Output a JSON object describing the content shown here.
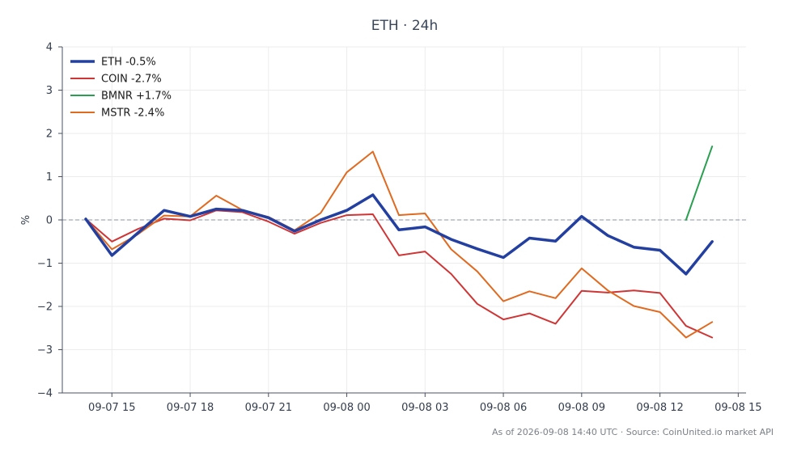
{
  "chart_data": {
    "type": "line",
    "title": "ETH · 24h",
    "ylabel": "%",
    "xlabel": "",
    "ylim": [
      -4,
      4
    ],
    "yticks": [
      "4",
      "3",
      "2",
      "1",
      "0",
      "−1",
      "−2",
      "−3",
      "−4"
    ],
    "ytick_values": [
      4,
      3,
      2,
      1,
      0,
      -1,
      -2,
      -3,
      -4
    ],
    "xlim_hours": [
      13.1,
      39.3
    ],
    "xticks": [
      "09-07 15",
      "09-07 18",
      "09-07 21",
      "09-08 00",
      "09-08 03",
      "09-08 06",
      "09-08 09",
      "09-08 12",
      "09-08 15"
    ],
    "xtick_hours": [
      15,
      18,
      21,
      24,
      27,
      30,
      33,
      36,
      39
    ],
    "grid": true,
    "baseline": 0,
    "legend_position": "top-left",
    "footer": "As of 2026-09-08 14:40 UTC · Source: CoinUnited.io market API",
    "series": [
      {
        "name": "ETH -0.5%",
        "color": "#2340a0",
        "width": 3.5,
        "x": [
          14,
          15,
          16,
          17,
          18,
          19,
          20,
          21,
          22,
          23,
          24,
          25,
          26,
          27,
          28,
          29,
          30,
          31,
          32,
          33,
          34,
          35,
          36,
          37,
          38
        ],
        "values": [
          0.02,
          -0.82,
          -0.3,
          0.22,
          0.08,
          0.25,
          0.22,
          0.05,
          -0.26,
          0.0,
          0.22,
          0.58,
          -0.23,
          -0.16,
          -0.45,
          -0.67,
          -0.87,
          -0.42,
          -0.49,
          0.08,
          -0.36,
          -0.63,
          -0.7,
          -1.25,
          -0.5
        ]
      },
      {
        "name": "COIN -2.7%",
        "color": "#d03535",
        "width": 2,
        "x": [
          14,
          15,
          16,
          17,
          18,
          19,
          20,
          21,
          22,
          23,
          24,
          25,
          26,
          27,
          28,
          29,
          30,
          31,
          32,
          33,
          34,
          35,
          36,
          37,
          38
        ],
        "values": [
          0.02,
          -0.5,
          -0.21,
          0.03,
          -0.01,
          0.22,
          0.18,
          -0.04,
          -0.32,
          -0.07,
          0.11,
          0.13,
          -0.82,
          -0.73,
          -1.25,
          -1.94,
          -2.3,
          -2.16,
          -2.4,
          -1.64,
          -1.68,
          -1.63,
          -1.69,
          -2.45,
          -2.72
        ]
      },
      {
        "name": "BMNR +1.7%",
        "color": "#28a050",
        "width": 2,
        "x": [
          37,
          38
        ],
        "values": [
          0.0,
          1.7
        ]
      },
      {
        "name": "MSTR -2.4%",
        "color": "#e06a20",
        "width": 2,
        "x": [
          14,
          15,
          16,
          17,
          18,
          19,
          20,
          21,
          22,
          23,
          24,
          25,
          26,
          27,
          28,
          29,
          30,
          31,
          32,
          33,
          34,
          35,
          36,
          37,
          38
        ],
        "values": [
          0.02,
          -0.68,
          -0.33,
          0.1,
          0.08,
          0.56,
          0.23,
          0.07,
          -0.24,
          0.16,
          1.1,
          1.58,
          0.11,
          0.15,
          -0.68,
          -1.19,
          -1.88,
          -1.65,
          -1.81,
          -1.12,
          -1.63,
          -1.99,
          -2.13,
          -2.72,
          -2.36
        ]
      }
    ]
  }
}
